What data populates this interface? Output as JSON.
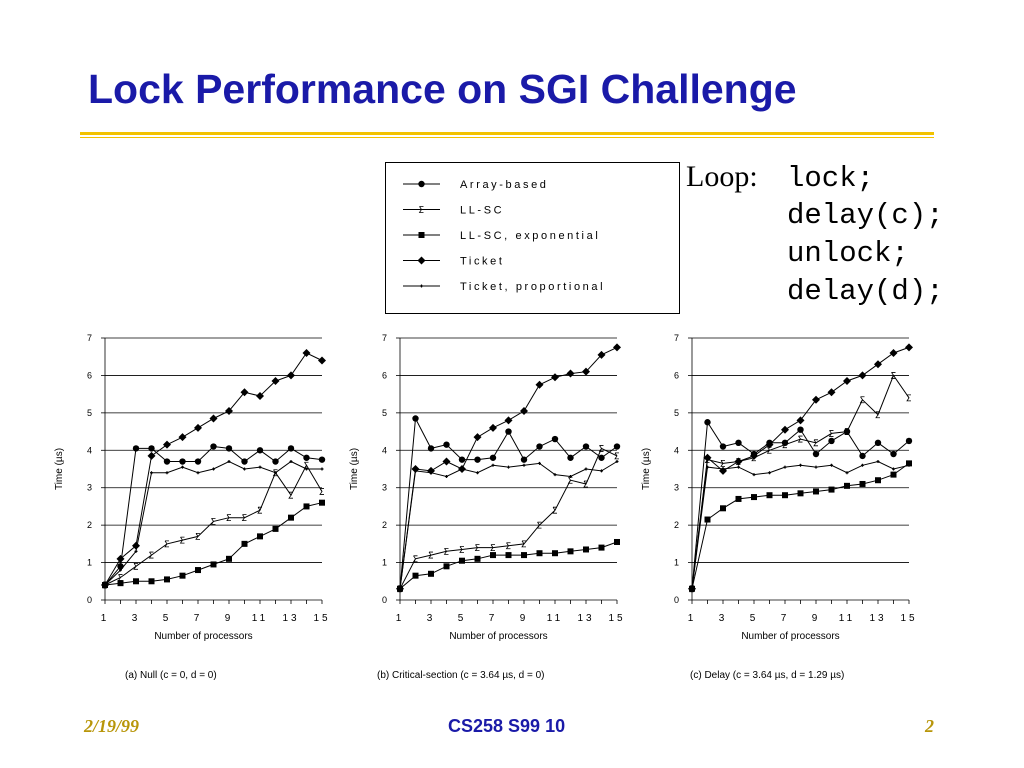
{
  "slide": {
    "title": "Lock Performance on SGI Challenge",
    "loop_label": "Loop:",
    "code_lines": [
      "lock;",
      "delay(c);",
      "unlock;",
      "delay(d);"
    ],
    "footer_date": "2/19/99",
    "footer_center": "CS258 S99 10",
    "footer_page": "2",
    "title_color": "#1a1aa8",
    "rule_color": "#f2c200"
  },
  "legend": [
    {
      "label": "Array-based",
      "marker": "circle"
    },
    {
      "label": "LL-SC",
      "marker": "open-sigma"
    },
    {
      "label": "LL-SC, exponential",
      "marker": "square"
    },
    {
      "label": "Ticket",
      "marker": "diamond"
    },
    {
      "label": "Ticket, proportional",
      "marker": "small-plus"
    }
  ],
  "chart_data": [
    {
      "type": "line",
      "caption": "(a) Null (c = 0, d = 0)",
      "xlabel": "Number of processors",
      "ylabel": "Time (µs)",
      "ylim": [
        0,
        7
      ],
      "xticks": [
        "1",
        "3",
        "5",
        "7",
        "9",
        "11",
        "13",
        "15"
      ],
      "yticks": [
        "0",
        "1",
        "2",
        "3",
        "4",
        "5",
        "6",
        "7"
      ],
      "grid": "horizontal",
      "x": [
        1,
        2,
        3,
        4,
        5,
        6,
        7,
        8,
        9,
        10,
        11,
        12,
        13,
        14,
        15
      ],
      "series": [
        {
          "name": "Array-based",
          "values": [
            0.4,
            0.9,
            4.05,
            4.05,
            3.7,
            3.7,
            3.7,
            4.1,
            4.05,
            3.7,
            4.0,
            3.7,
            4.05,
            3.8,
            3.75
          ]
        },
        {
          "name": "LL-SC",
          "values": [
            0.4,
            0.6,
            0.9,
            1.2,
            1.5,
            1.6,
            1.7,
            2.1,
            2.2,
            2.2,
            2.4,
            3.4,
            2.8,
            3.6,
            2.9
          ]
        },
        {
          "name": "LL-SC, exponential",
          "values": [
            0.4,
            0.45,
            0.5,
            0.5,
            0.55,
            0.65,
            0.8,
            0.95,
            1.1,
            1.5,
            1.7,
            1.9,
            2.2,
            2.5,
            2.6
          ]
        },
        {
          "name": "Ticket",
          "values": [
            0.4,
            1.1,
            1.45,
            3.85,
            4.15,
            4.35,
            4.6,
            4.85,
            5.05,
            5.55,
            5.45,
            5.85,
            6.0,
            6.6,
            6.4
          ]
        },
        {
          "name": "Ticket, proportional",
          "values": [
            0.4,
            0.8,
            1.3,
            3.4,
            3.4,
            3.55,
            3.4,
            3.5,
            3.7,
            3.5,
            3.55,
            3.4,
            3.7,
            3.5,
            3.5
          ]
        }
      ]
    },
    {
      "type": "line",
      "caption": "(b) Critical-section (c = 3.64 µs, d = 0)",
      "xlabel": "Number of processors",
      "ylabel": "Time (µs)",
      "ylim": [
        0,
        7
      ],
      "xticks": [
        "1",
        "3",
        "5",
        "7",
        "9",
        "11",
        "13",
        "15"
      ],
      "yticks": [
        "0",
        "1",
        "2",
        "3",
        "4",
        "5",
        "6",
        "7"
      ],
      "grid": "horizontal",
      "x": [
        1,
        2,
        3,
        4,
        5,
        6,
        7,
        8,
        9,
        10,
        11,
        12,
        13,
        14,
        15
      ],
      "series": [
        {
          "name": "Array-based",
          "values": [
            0.3,
            4.85,
            4.05,
            4.15,
            3.75,
            3.75,
            3.8,
            4.5,
            3.75,
            4.1,
            4.3,
            3.8,
            4.1,
            3.8,
            4.1
          ]
        },
        {
          "name": "LL-SC",
          "values": [
            0.3,
            1.1,
            1.2,
            1.3,
            1.35,
            1.4,
            1.4,
            1.45,
            1.5,
            2.0,
            2.4,
            3.2,
            3.1,
            4.05,
            3.85
          ]
        },
        {
          "name": "LL-SC, exponential",
          "values": [
            0.3,
            0.65,
            0.7,
            0.9,
            1.05,
            1.1,
            1.2,
            1.2,
            1.2,
            1.25,
            1.25,
            1.3,
            1.35,
            1.4,
            1.55
          ]
        },
        {
          "name": "Ticket",
          "values": [
            0.3,
            3.5,
            3.45,
            3.7,
            3.5,
            4.35,
            4.6,
            4.8,
            5.05,
            5.75,
            5.95,
            6.05,
            6.1,
            6.55,
            6.75
          ]
        },
        {
          "name": "Ticket, proportional",
          "values": [
            0.3,
            3.45,
            3.4,
            3.3,
            3.5,
            3.4,
            3.6,
            3.55,
            3.6,
            3.65,
            3.35,
            3.3,
            3.5,
            3.45,
            3.7
          ]
        }
      ]
    },
    {
      "type": "line",
      "caption": "(c) Delay (c = 3.64 µs, d = 1.29 µs)",
      "xlabel": "Number of processors",
      "ylabel": "Time (µs)",
      "ylim": [
        0,
        7
      ],
      "xticks": [
        "1",
        "3",
        "5",
        "7",
        "9",
        "11",
        "13",
        "15"
      ],
      "yticks": [
        "0",
        "1",
        "2",
        "3",
        "4",
        "5",
        "6",
        "7"
      ],
      "grid": "horizontal",
      "x": [
        1,
        2,
        3,
        4,
        5,
        6,
        7,
        8,
        9,
        10,
        11,
        12,
        13,
        14,
        15
      ],
      "series": [
        {
          "name": "Array-based",
          "values": [
            0.3,
            4.75,
            4.1,
            4.2,
            3.9,
            4.2,
            4.2,
            4.55,
            3.9,
            4.25,
            4.5,
            3.85,
            4.2,
            3.9,
            4.25
          ]
        },
        {
          "name": "LL-SC",
          "values": [
            0.3,
            3.75,
            3.65,
            3.7,
            3.8,
            4.0,
            4.15,
            4.3,
            4.2,
            4.45,
            4.5,
            5.35,
            4.95,
            6.0,
            5.4
          ]
        },
        {
          "name": "LL-SC, exponential",
          "values": [
            0.3,
            2.15,
            2.45,
            2.7,
            2.75,
            2.8,
            2.8,
            2.85,
            2.9,
            2.95,
            3.05,
            3.1,
            3.2,
            3.35,
            3.65
          ]
        },
        {
          "name": "Ticket",
          "values": [
            0.3,
            3.8,
            3.45,
            3.7,
            3.85,
            4.15,
            4.55,
            4.8,
            5.35,
            5.55,
            5.85,
            6.0,
            6.3,
            6.6,
            6.75
          ]
        },
        {
          "name": "Ticket, proportional",
          "values": [
            0.3,
            3.55,
            3.5,
            3.55,
            3.35,
            3.4,
            3.55,
            3.6,
            3.55,
            3.6,
            3.4,
            3.6,
            3.7,
            3.5,
            3.6
          ]
        }
      ]
    }
  ]
}
